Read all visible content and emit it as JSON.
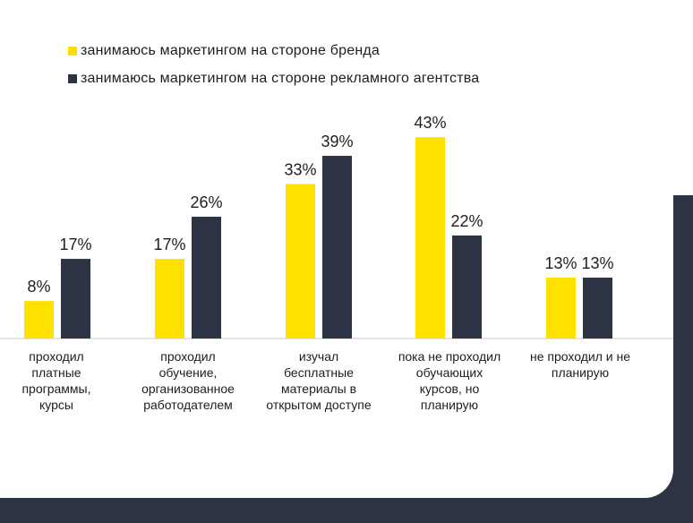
{
  "colors": {
    "brand": "#ffe100",
    "agency": "#2c3444",
    "axis": "#c8c8c8",
    "text": "#1e1e1e"
  },
  "chart_data": {
    "type": "bar",
    "categories": [
      [
        "проходил",
        "платные",
        "программы,",
        "курсы"
      ],
      [
        "проходил",
        "обучение,",
        "организованное",
        "работодателем"
      ],
      [
        "изучал",
        "бесплатные",
        "материалы в",
        "открытом доступе"
      ],
      [
        "пока не проходил",
        "обучающих",
        "курсов, но",
        "планирую"
      ],
      [
        "не проходил и не",
        "планирую"
      ]
    ],
    "series": [
      {
        "name": "занимаюсь маркетингом на стороне бренда",
        "values": [
          8,
          17,
          33,
          43,
          13
        ],
        "labels": [
          "8%",
          "17%",
          "33%",
          "43%",
          "13%"
        ]
      },
      {
        "name": "занимаюсь маркетингом на стороне рекламного агентства",
        "values": [
          17,
          26,
          39,
          22,
          13
        ],
        "labels": [
          "17%",
          "26%",
          "39%",
          "22%",
          "13%"
        ]
      }
    ],
    "ylim": [
      0,
      45
    ],
    "grid": false,
    "legend": "top-left"
  }
}
